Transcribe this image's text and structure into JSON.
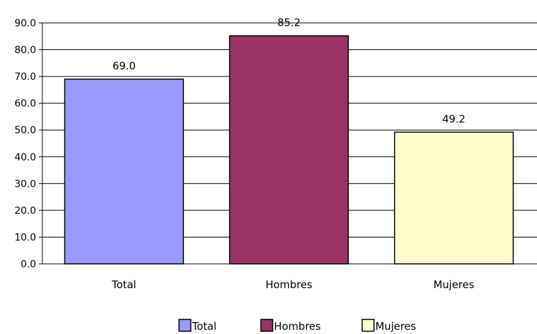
{
  "chart_data": {
    "type": "bar",
    "categories": [
      "Total",
      "Hombres",
      "Mujeres"
    ],
    "values": [
      69.0,
      85.2,
      49.2
    ],
    "data_labels": [
      "69.0",
      "85.2",
      "49.2"
    ],
    "title": "",
    "xlabel": "",
    "ylabel": "",
    "ylim": [
      0,
      90
    ],
    "yticks": [
      "0.0",
      "10.0",
      "20.0",
      "30.0",
      "40.0",
      "50.0",
      "60.0",
      "70.0",
      "80.0",
      "90.0"
    ],
    "grid": true,
    "legend": {
      "placement": "bottom-center",
      "entries": [
        "Total",
        "Hombres",
        "Mujeres"
      ]
    },
    "colors": [
      "#9999FF",
      "#993366",
      "#FFFFCC"
    ]
  }
}
